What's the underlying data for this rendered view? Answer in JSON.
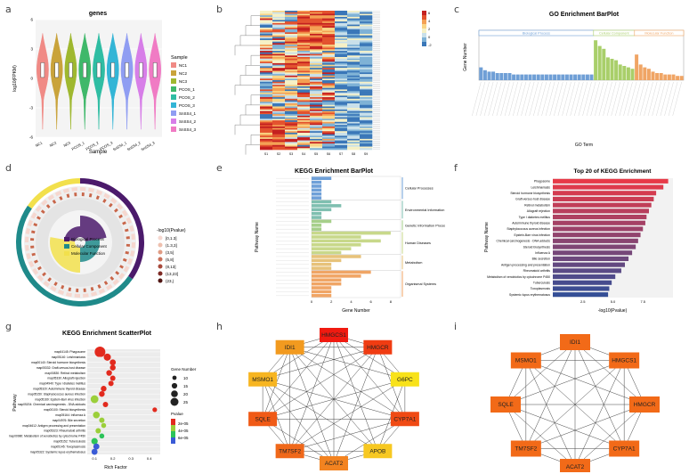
{
  "panels": {
    "a": "a",
    "b": "b",
    "c": "c",
    "d": "d",
    "e": "e",
    "f": "f",
    "g": "g",
    "h": "h",
    "i": "i"
  },
  "chart_data": [
    {
      "id": "a",
      "type": "violin",
      "title": "genes",
      "xlabel": "Sample",
      "ylabel": "log10(FPKM)",
      "categories": [
        "NC1",
        "NC2",
        "NC3",
        "PCOS_1",
        "PCOS_2",
        "PCOS_3",
        "SnSS4_1",
        "SnSS4_2",
        "SnSS4_3"
      ],
      "legend_title": "Sample",
      "ylim": [
        -6,
        6
      ],
      "yticks": [
        -6,
        -3,
        0,
        3,
        6
      ],
      "colors": [
        "#f08a85",
        "#c9a33b",
        "#9fb82f",
        "#3fb86a",
        "#2fbda3",
        "#33b5d6",
        "#8f9df2",
        "#d77ee8",
        "#f07bc4"
      ]
    },
    {
      "id": "b",
      "type": "heatmap",
      "rows": 90,
      "cols": 9,
      "colorbar_ticks": [
        "6",
        "4",
        "2",
        "0",
        "-2"
      ],
      "col_labels": [
        "S1",
        "S2",
        "S3",
        "S4",
        "S5",
        "S6",
        "S7",
        "S8",
        "S9"
      ]
    },
    {
      "id": "c",
      "type": "bar",
      "title": "GO Enrichment BarPlot",
      "xlabel": "GO Term",
      "ylabel": "Gene Number",
      "groups": [
        "Biological Process",
        "Cellular Component",
        "Molecular Function"
      ],
      "group_colors": [
        "#6f9fd6",
        "#a9cf6a",
        "#f0a565"
      ],
      "series": [
        {
          "name": "Biological Process",
          "values": [
            9,
            7,
            6,
            6,
            5,
            5,
            5,
            5,
            4,
            4,
            4,
            4,
            4,
            4,
            4,
            4,
            4,
            4,
            4,
            4,
            4,
            4,
            4,
            4,
            4,
            4,
            4,
            4
          ]
        },
        {
          "name": "Cellular Component",
          "values": [
            28,
            24,
            22,
            16,
            15,
            14,
            11,
            10,
            9,
            8
          ]
        },
        {
          "name": "Molecular Function",
          "values": [
            18,
            11,
            9,
            8,
            6,
            5,
            5,
            4,
            4,
            4,
            3,
            3
          ]
        }
      ],
      "ylim": [
        0,
        30
      ]
    },
    {
      "id": "d",
      "type": "circular",
      "legend": [
        "Biological Process",
        "Cellular Component",
        "Molecular Function"
      ],
      "legend_colors": [
        "#4b1a6b",
        "#1f8a8a",
        "#f2e04c"
      ],
      "scale_title": "-log10(Pvalue)",
      "scale_labels": [
        "[0,1.3]",
        "(1.3,3]",
        "(3,5]",
        "(5,8]",
        "(8,13]",
        "(13,23]",
        "(23,)"
      ],
      "scale_colors": [
        "#f6d7cf",
        "#eec0ae",
        "#e09c84",
        "#c9705a",
        "#a84a3c",
        "#7e2b25",
        "#4f1512"
      ]
    },
    {
      "id": "e",
      "type": "bar",
      "title": "KEGG Enrichment BarPlot",
      "xlabel": "Gene Number",
      "ylabel": "Pathway Name",
      "xticks": [
        0,
        2,
        4,
        6,
        8
      ],
      "xlim": [
        0,
        9
      ],
      "groups": [
        "Cellular Processes",
        "Environmental Information Processing",
        "Genetic Information Processing",
        "Human Diseases",
        "Metabolism",
        "Organismal Systems"
      ],
      "group_colors": [
        "#6fa0d8",
        "#7fbfb0",
        "#a6cf8a",
        "#c8d88a",
        "#e7c27a",
        "#f0a565"
      ],
      "series": [
        {
          "name": "Cellular Processes",
          "values": [
            2,
            1,
            1,
            1,
            1,
            1
          ]
        },
        {
          "name": "Environmental Information Processing",
          "values": [
            2,
            3,
            2,
            1,
            1
          ]
        },
        {
          "name": "Genetic Information Processing",
          "values": [
            2,
            1,
            1
          ]
        },
        {
          "name": "Human Diseases",
          "values": [
            8,
            5,
            7,
            5,
            4,
            3
          ]
        },
        {
          "name": "Metabolism",
          "values": [
            5,
            3,
            2,
            2
          ]
        },
        {
          "name": "Organismal Systems",
          "values": [
            6,
            5,
            3,
            3,
            2,
            2,
            2
          ]
        }
      ]
    },
    {
      "id": "f",
      "type": "bar",
      "title": "Top 20 of KEGG Enrichment",
      "xlabel": "-log10(Pvalue)",
      "ylabel": "Pathway Name",
      "xticks": [
        "2.5",
        "5.0",
        "7.5"
      ],
      "categories": [
        "Phagosome",
        "Leishmaniasis",
        "Steroid hormone biosynthesis",
        "Graft-versus-host disease",
        "Retinol metabolism",
        "Allograft rejection",
        "Type I diabetes mellitus",
        "Autoimmune thyroid disease",
        "Staphylococcus aureus infection",
        "Epstein-Barr virus infection",
        "Chemical carcinogenesis - DNA adducts",
        "Steroid biosynthesis",
        "Influenza A",
        "Bile secretion",
        "Antigen processing and presentation",
        "Rheumatoid arthritis",
        "Metabolism of xenobiotics by cytochrome P450",
        "Tuberculosis",
        "Toxoplasmosis",
        "Systemic lupus erythematosus"
      ],
      "values": [
        9.6,
        9.2,
        8.6,
        8.4,
        8.2,
        8.0,
        7.8,
        7.7,
        7.5,
        7.3,
        7.1,
        6.9,
        6.6,
        6.3,
        6.0,
        5.7,
        5.2,
        4.9,
        4.7,
        4.6
      ],
      "xlim": [
        0,
        10
      ]
    },
    {
      "id": "g",
      "type": "scatter",
      "title": "KEGG Enrichment ScatterPlot",
      "xlabel": "Rich Factor",
      "ylabel": "Pathway",
      "xticks": [
        "0.1",
        "0.2",
        "0.3",
        "0.4"
      ],
      "xlim": [
        0.06,
        0.46
      ],
      "size_legend_title": "Gene Number",
      "size_legend": [
        10,
        15,
        20,
        25
      ],
      "color_legend_title": "Pvalue",
      "color_legend": [
        "2e-05",
        "4e-05",
        "6e-05"
      ],
      "categories": [
        "map04145: Phagosome",
        "map05140: Leishmaniasis",
        "map00140: Steroid hormone biosynthesis",
        "map05332: Graft-versus-host disease",
        "map00830: Retinol metabolism",
        "map05330: Allograft rejection",
        "map04940: Type I diabetes mellitus",
        "map05320: Autoimmune thyroid disease",
        "map05150: Staphylococcus aureus infection",
        "map05169: Epstein-Barr virus infection",
        "map05204: Chemical carcinogenesis - DNA adducts",
        "map00100: Steroid biosynthesis",
        "map05164: Influenza A",
        "map04976: Bile secretion",
        "map04612: Antigen processing and presentation",
        "map05323: Rheumatoid arthritis",
        "map00980: Metabolism of xenobiotics by cytochrome P450",
        "map05152: Tuberculosis",
        "map05145: Toxoplasmosis",
        "map05322: Systemic lupus erythematosus"
      ],
      "points": [
        {
          "x": 0.13,
          "size": 25,
          "p": 0.0
        },
        {
          "x": 0.17,
          "size": 15,
          "p": 0.0
        },
        {
          "x": 0.2,
          "size": 12,
          "p": 0.0
        },
        {
          "x": 0.2,
          "size": 11,
          "p": 0.0
        },
        {
          "x": 0.18,
          "size": 11,
          "p": 0.0
        },
        {
          "x": 0.2,
          "size": 10,
          "p": 0.0
        },
        {
          "x": 0.19,
          "size": 10,
          "p": 0.0
        },
        {
          "x": 0.15,
          "size": 11,
          "p": 0.0
        },
        {
          "x": 0.14,
          "size": 11,
          "p": 0.0
        },
        {
          "x": 0.1,
          "size": 17,
          "p": 1e-05
        },
        {
          "x": 0.16,
          "size": 10,
          "p": 0.0
        },
        {
          "x": 0.43,
          "size": 8,
          "p": 0.0
        },
        {
          "x": 0.11,
          "size": 14,
          "p": 1e-05
        },
        {
          "x": 0.14,
          "size": 10,
          "p": 1e-05
        },
        {
          "x": 0.15,
          "size": 9,
          "p": 1e-05
        },
        {
          "x": 0.12,
          "size": 10,
          "p": 2e-05
        },
        {
          "x": 0.14,
          "size": 9,
          "p": 3e-05
        },
        {
          "x": 0.1,
          "size": 13,
          "p": 4e-05
        },
        {
          "x": 0.11,
          "size": 12,
          "p": 5e-05
        },
        {
          "x": 0.1,
          "size": 12,
          "p": 6e-05
        }
      ]
    },
    {
      "id": "h",
      "type": "network",
      "nodes": [
        {
          "label": "HMGCS1",
          "color": "#f01a10"
        },
        {
          "label": "HMGCR",
          "color": "#f03c12"
        },
        {
          "label": "G6PC",
          "color": "#f8e21a"
        },
        {
          "label": "CYP7A1",
          "color": "#f04a14"
        },
        {
          "label": "APOB",
          "color": "#f7c821"
        },
        {
          "label": "ACAT2",
          "color": "#f38320"
        },
        {
          "label": "TM7SF2",
          "color": "#f0681a"
        },
        {
          "label": "SQLE",
          "color": "#f05a16"
        },
        {
          "label": "MSMO1",
          "color": "#f7b521"
        },
        {
          "label": "IDI1",
          "color": "#f29a1f"
        }
      ]
    },
    {
      "id": "i",
      "type": "network",
      "nodes": [
        {
          "label": "IDI1",
          "color": "#f26a18"
        },
        {
          "label": "HMGCS1",
          "color": "#f26a18"
        },
        {
          "label": "HMGCR",
          "color": "#f26a18"
        },
        {
          "label": "CYP7A1",
          "color": "#f26a18"
        },
        {
          "label": "ACAT2",
          "color": "#f26a18"
        },
        {
          "label": "TM7SF2",
          "color": "#f26a18"
        },
        {
          "label": "SQLE",
          "color": "#f26a18"
        },
        {
          "label": "MSMO1",
          "color": "#f26a18"
        }
      ]
    }
  ]
}
